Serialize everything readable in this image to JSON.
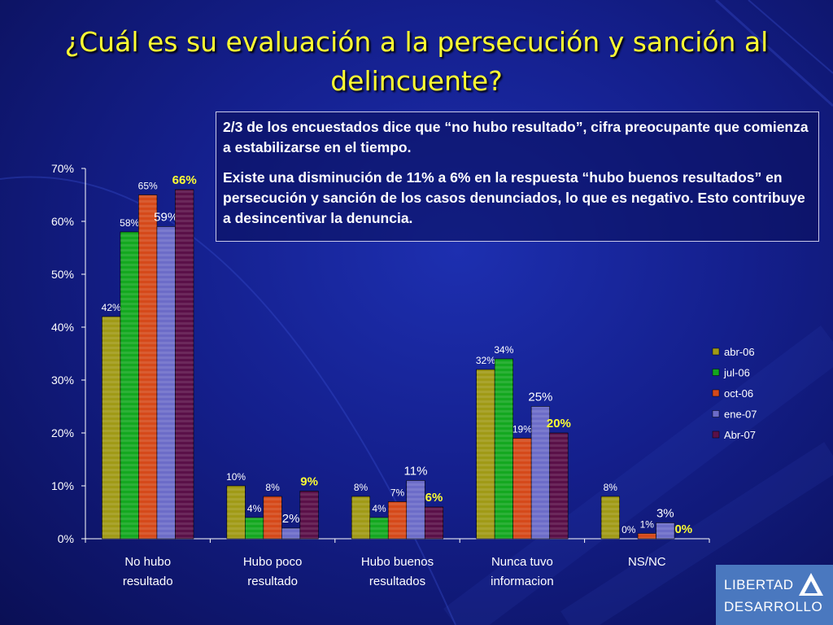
{
  "slide": {
    "title": "¿Cuál es su evaluación a la persecución y sanción al delincuente?",
    "note_p1": "2/3 de los encuestados dice que “no hubo resultado”, cifra preocupante que comienza a estabilizarse en el tiempo.",
    "note_p2": "Existe una disminución de 11% a 6% en la respuesta “hubo buenos resultados” en persecución y sanción de los casos denunciados, lo que es negativo. Esto contribuye a desincentivar la denuncia.",
    "logo_line1": "LIBERTAD",
    "logo_line2": "DESARROLLO"
  },
  "chart_data": {
    "type": "bar",
    "categories": [
      [
        "No hubo",
        "resultado"
      ],
      [
        "Hubo poco",
        "resultado"
      ],
      [
        "Hubo buenos",
        "resultados"
      ],
      [
        "Nunca tuvo",
        "informacion"
      ],
      [
        "NS/NC"
      ]
    ],
    "series": [
      {
        "name": "abr-06",
        "color": "#a09a16",
        "values": [
          42,
          10,
          8,
          32,
          8
        ],
        "labels": [
          "42%",
          "10%",
          "8%",
          "32%",
          "8%"
        ]
      },
      {
        "name": "jul-06",
        "color": "#14a820",
        "values": [
          58,
          4,
          4,
          34,
          0
        ],
        "labels": [
          "58%",
          "4%",
          "4%",
          "34%",
          "0%"
        ]
      },
      {
        "name": "oct-06",
        "color": "#d5491a",
        "values": [
          65,
          8,
          7,
          19,
          1
        ],
        "labels": [
          "65%",
          "8%",
          "7%",
          "19%",
          "1%"
        ]
      },
      {
        "name": "ene-07",
        "color": "#6c6cc8",
        "values": [
          59,
          2,
          11,
          25,
          3
        ],
        "labels": [
          "59%",
          "2%",
          "11%",
          "25%",
          "3%"
        ]
      },
      {
        "name": "Abr-07",
        "color": "#5a1048",
        "values": [
          66,
          9,
          6,
          20,
          0
        ],
        "labels": [
          "66%",
          "9%",
          "6%",
          "20%",
          "0%"
        ]
      }
    ],
    "ylim": [
      0,
      70
    ],
    "yticks": [
      "0%",
      "10%",
      "20%",
      "30%",
      "40%",
      "50%",
      "60%",
      "70%"
    ],
    "legend_position": "right",
    "grid": false,
    "xlabel": "",
    "ylabel": ""
  }
}
